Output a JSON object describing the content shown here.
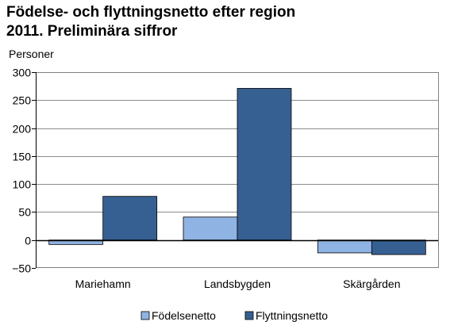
{
  "title_lines": [
    "Födelse- och flyttningsnetto efter region",
    "2011. Preliminära siffror"
  ],
  "chart_data": {
    "type": "bar",
    "categories": [
      "Mariehamn",
      "Landsbygden",
      "Skärgården"
    ],
    "series": [
      {
        "name": "Födelsenetto",
        "values": [
          -8,
          41,
          -23
        ],
        "color": "#8fb4e3"
      },
      {
        "name": "Flyttningsnetto",
        "values": [
          78,
          271,
          -26
        ],
        "color": "#376092"
      }
    ],
    "ylabel": "Personer",
    "ylim": [
      -50,
      300
    ],
    "yticks": [
      -50,
      0,
      50,
      100,
      150,
      200,
      250,
      300
    ],
    "grid": true,
    "legend": "bottom"
  }
}
